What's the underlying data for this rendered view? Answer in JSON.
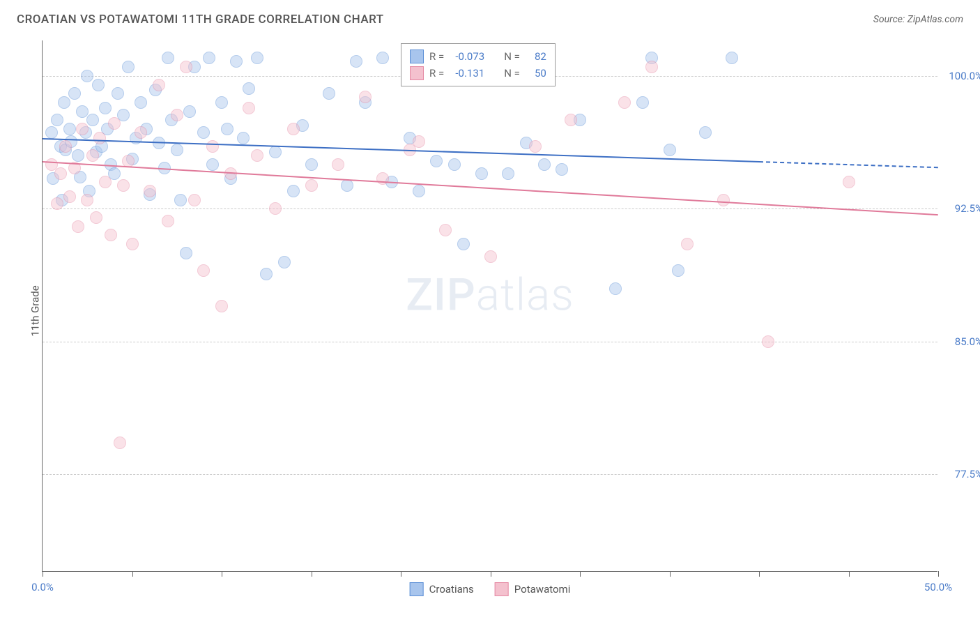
{
  "header": {
    "title": "CROATIAN VS POTAWATOMI 11TH GRADE CORRELATION CHART",
    "source": "Source: ZipAtlas.com"
  },
  "chart": {
    "type": "scatter",
    "ylabel": "11th Grade",
    "background_color": "#ffffff",
    "grid_color": "#cccccc",
    "axis_color": "#666666",
    "label_color": "#4a7bc8",
    "title_color": "#555555",
    "title_fontsize": 17,
    "label_fontsize": 15,
    "xlim": [
      0,
      50
    ],
    "ylim": [
      72,
      102
    ],
    "xticks": [
      0,
      5,
      10,
      15,
      20,
      25,
      30,
      35,
      40,
      45,
      50
    ],
    "xtick_labels": {
      "0": "0.0%",
      "50": "50.0%"
    },
    "yticks": [
      77.5,
      85.0,
      92.5,
      100.0
    ],
    "ytick_labels": [
      "77.5%",
      "85.0%",
      "92.5%",
      "100.0%"
    ],
    "marker_radius": 9,
    "marker_opacity": 0.45,
    "watermark": "ZIPatlas",
    "legend_box": {
      "rows": [
        {
          "swatch_fill": "#a8c5ed",
          "swatch_border": "#5b8fd6",
          "r_label": "R =",
          "r_val": "-0.073",
          "n_label": "N =",
          "n_val": "82"
        },
        {
          "swatch_fill": "#f4c1ce",
          "swatch_border": "#e589a3",
          "r_label": "R =",
          "r_val": "-0.131",
          "n_label": "N =",
          "n_val": "50"
        }
      ]
    },
    "bottom_legend": [
      {
        "swatch_fill": "#a8c5ed",
        "swatch_border": "#5b8fd6",
        "label": "Croatians"
      },
      {
        "swatch_fill": "#f4c1ce",
        "swatch_border": "#e589a3",
        "label": "Potawatomi"
      }
    ],
    "series": [
      {
        "name": "Croatians",
        "fill": "#a8c5ed",
        "border": "#5b8fd6",
        "trend": {
          "x0": 0,
          "y0": 96.5,
          "x1": 40,
          "y1": 95.2,
          "solid_end_x": 40,
          "dash_end_x": 50,
          "color": "#3d6fc4",
          "width": 2
        },
        "points": [
          [
            0.5,
            96.8
          ],
          [
            0.6,
            94.2
          ],
          [
            0.8,
            97.5
          ],
          [
            1.0,
            96.0
          ],
          [
            1.1,
            93.0
          ],
          [
            1.2,
            98.5
          ],
          [
            1.3,
            95.8
          ],
          [
            1.5,
            97.0
          ],
          [
            1.6,
            96.3
          ],
          [
            1.8,
            99.0
          ],
          [
            2.0,
            95.5
          ],
          [
            2.1,
            94.3
          ],
          [
            2.2,
            98.0
          ],
          [
            2.4,
            96.8
          ],
          [
            2.5,
            100.0
          ],
          [
            2.6,
            93.5
          ],
          [
            2.8,
            97.5
          ],
          [
            3.0,
            95.7
          ],
          [
            3.1,
            99.5
          ],
          [
            3.3,
            96.0
          ],
          [
            3.5,
            98.2
          ],
          [
            3.6,
            97.0
          ],
          [
            3.8,
            95.0
          ],
          [
            4.0,
            94.5
          ],
          [
            4.2,
            99.0
          ],
          [
            4.5,
            97.8
          ],
          [
            4.8,
            100.5
          ],
          [
            5.0,
            95.3
          ],
          [
            5.2,
            96.5
          ],
          [
            5.5,
            98.5
          ],
          [
            5.8,
            97.0
          ],
          [
            6.0,
            93.3
          ],
          [
            6.3,
            99.2
          ],
          [
            6.5,
            96.2
          ],
          [
            6.8,
            94.8
          ],
          [
            7.0,
            101.0
          ],
          [
            7.2,
            97.5
          ],
          [
            7.5,
            95.8
          ],
          [
            7.7,
            93.0
          ],
          [
            8.0,
            90.0
          ],
          [
            8.2,
            98.0
          ],
          [
            8.5,
            100.5
          ],
          [
            9.0,
            96.8
          ],
          [
            9.3,
            101.0
          ],
          [
            9.5,
            95.0
          ],
          [
            10.0,
            98.5
          ],
          [
            10.3,
            97.0
          ],
          [
            10.5,
            94.2
          ],
          [
            10.8,
            100.8
          ],
          [
            11.2,
            96.5
          ],
          [
            11.5,
            99.3
          ],
          [
            12.0,
            101.0
          ],
          [
            12.5,
            88.8
          ],
          [
            13.0,
            95.7
          ],
          [
            13.5,
            89.5
          ],
          [
            14.0,
            93.5
          ],
          [
            14.5,
            97.2
          ],
          [
            15.0,
            95.0
          ],
          [
            16.0,
            99.0
          ],
          [
            17.0,
            93.8
          ],
          [
            17.5,
            100.8
          ],
          [
            18.0,
            98.5
          ],
          [
            19.0,
            101.0
          ],
          [
            19.5,
            94.0
          ],
          [
            20.5,
            96.5
          ],
          [
            21.0,
            93.5
          ],
          [
            22.0,
            95.2
          ],
          [
            23.0,
            95.0
          ],
          [
            23.5,
            90.5
          ],
          [
            24.5,
            94.5
          ],
          [
            26.0,
            94.5
          ],
          [
            27.0,
            96.2
          ],
          [
            28.0,
            95.0
          ],
          [
            29.0,
            94.7
          ],
          [
            30.0,
            97.5
          ],
          [
            32.0,
            88.0
          ],
          [
            33.5,
            98.5
          ],
          [
            34.0,
            101.0
          ],
          [
            35.0,
            95.8
          ],
          [
            35.5,
            89.0
          ],
          [
            37.0,
            96.8
          ],
          [
            38.5,
            101.0
          ]
        ]
      },
      {
        "name": "Potawatomi",
        "fill": "#f4c1ce",
        "border": "#e589a3",
        "trend": {
          "x0": 0,
          "y0": 95.2,
          "x1": 50,
          "y1": 92.2,
          "solid_end_x": 50,
          "dash_end_x": 50,
          "color": "#e07a9a",
          "width": 2
        },
        "points": [
          [
            0.5,
            95.0
          ],
          [
            0.8,
            92.8
          ],
          [
            1.0,
            94.5
          ],
          [
            1.3,
            96.0
          ],
          [
            1.5,
            93.2
          ],
          [
            1.8,
            94.8
          ],
          [
            2.0,
            91.5
          ],
          [
            2.2,
            97.0
          ],
          [
            2.5,
            93.0
          ],
          [
            2.8,
            95.5
          ],
          [
            3.0,
            92.0
          ],
          [
            3.2,
            96.5
          ],
          [
            3.5,
            94.0
          ],
          [
            3.8,
            91.0
          ],
          [
            4.0,
            97.3
          ],
          [
            4.3,
            79.3
          ],
          [
            4.5,
            93.8
          ],
          [
            4.8,
            95.2
          ],
          [
            5.0,
            90.5
          ],
          [
            5.5,
            96.8
          ],
          [
            6.0,
            93.5
          ],
          [
            6.5,
            99.5
          ],
          [
            7.0,
            91.8
          ],
          [
            7.5,
            97.8
          ],
          [
            8.0,
            100.5
          ],
          [
            8.5,
            93.0
          ],
          [
            9.0,
            89.0
          ],
          [
            9.5,
            96.0
          ],
          [
            10.0,
            87.0
          ],
          [
            10.5,
            94.5
          ],
          [
            11.5,
            98.2
          ],
          [
            12.0,
            95.5
          ],
          [
            13.0,
            92.5
          ],
          [
            14.0,
            97.0
          ],
          [
            15.0,
            93.8
          ],
          [
            16.5,
            95.0
          ],
          [
            18.0,
            98.8
          ],
          [
            19.0,
            94.2
          ],
          [
            20.5,
            95.8
          ],
          [
            21.0,
            96.3
          ],
          [
            22.5,
            91.3
          ],
          [
            25.0,
            89.8
          ],
          [
            27.5,
            96.0
          ],
          [
            29.5,
            97.5
          ],
          [
            32.5,
            98.5
          ],
          [
            34.0,
            100.5
          ],
          [
            36.0,
            90.5
          ],
          [
            38.0,
            93.0
          ],
          [
            40.5,
            85.0
          ],
          [
            45.0,
            94.0
          ]
        ]
      }
    ]
  }
}
